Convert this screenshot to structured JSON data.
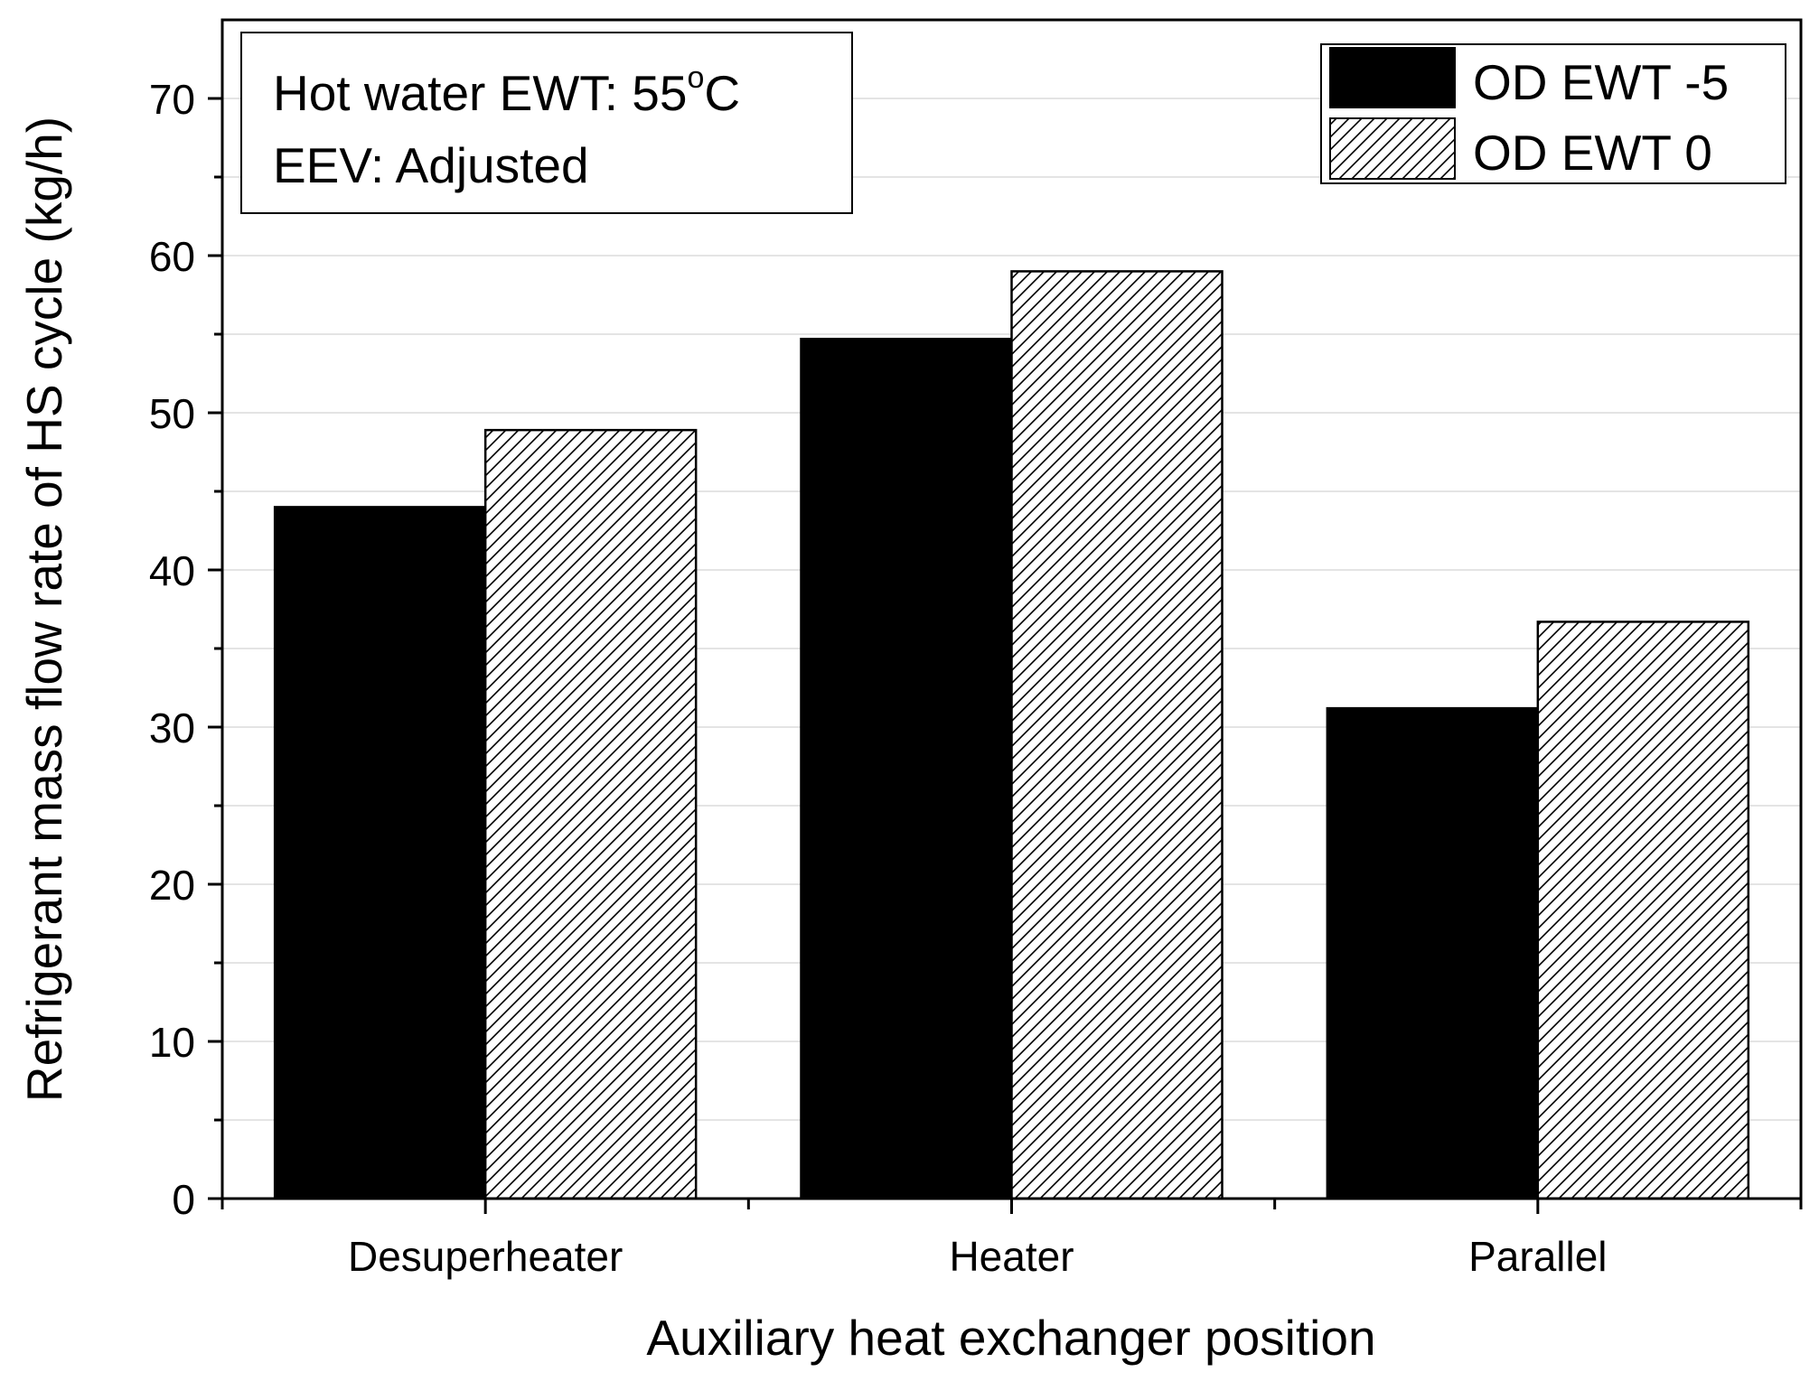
{
  "chart_data": {
    "type": "bar",
    "title": "",
    "xlabel": "Auxiliary heat exchanger position",
    "ylabel": "Refrigerant mass flow rate of HS cycle (kg/h)",
    "categories": [
      "Desuperheater",
      "Heater",
      "Parallel"
    ],
    "series": [
      {
        "name": "OD EWT -5",
        "values": [
          44.0,
          54.7,
          31.2
        ],
        "fill": "solid",
        "color": "#000000"
      },
      {
        "name": "OD EWT 0",
        "values": [
          48.9,
          59.0,
          36.7
        ],
        "fill": "hatch",
        "color": "#ffffff"
      }
    ],
    "ylim": [
      0,
      75
    ],
    "yticks": [
      0,
      10,
      20,
      30,
      40,
      50,
      60,
      70
    ],
    "grid": true,
    "legend_position": "top-right",
    "annotation": {
      "line1": "Hot water EWT: 55",
      "line1_superscript": "o",
      "line1_unit": "C",
      "line2": "EEV: Adjusted"
    }
  }
}
